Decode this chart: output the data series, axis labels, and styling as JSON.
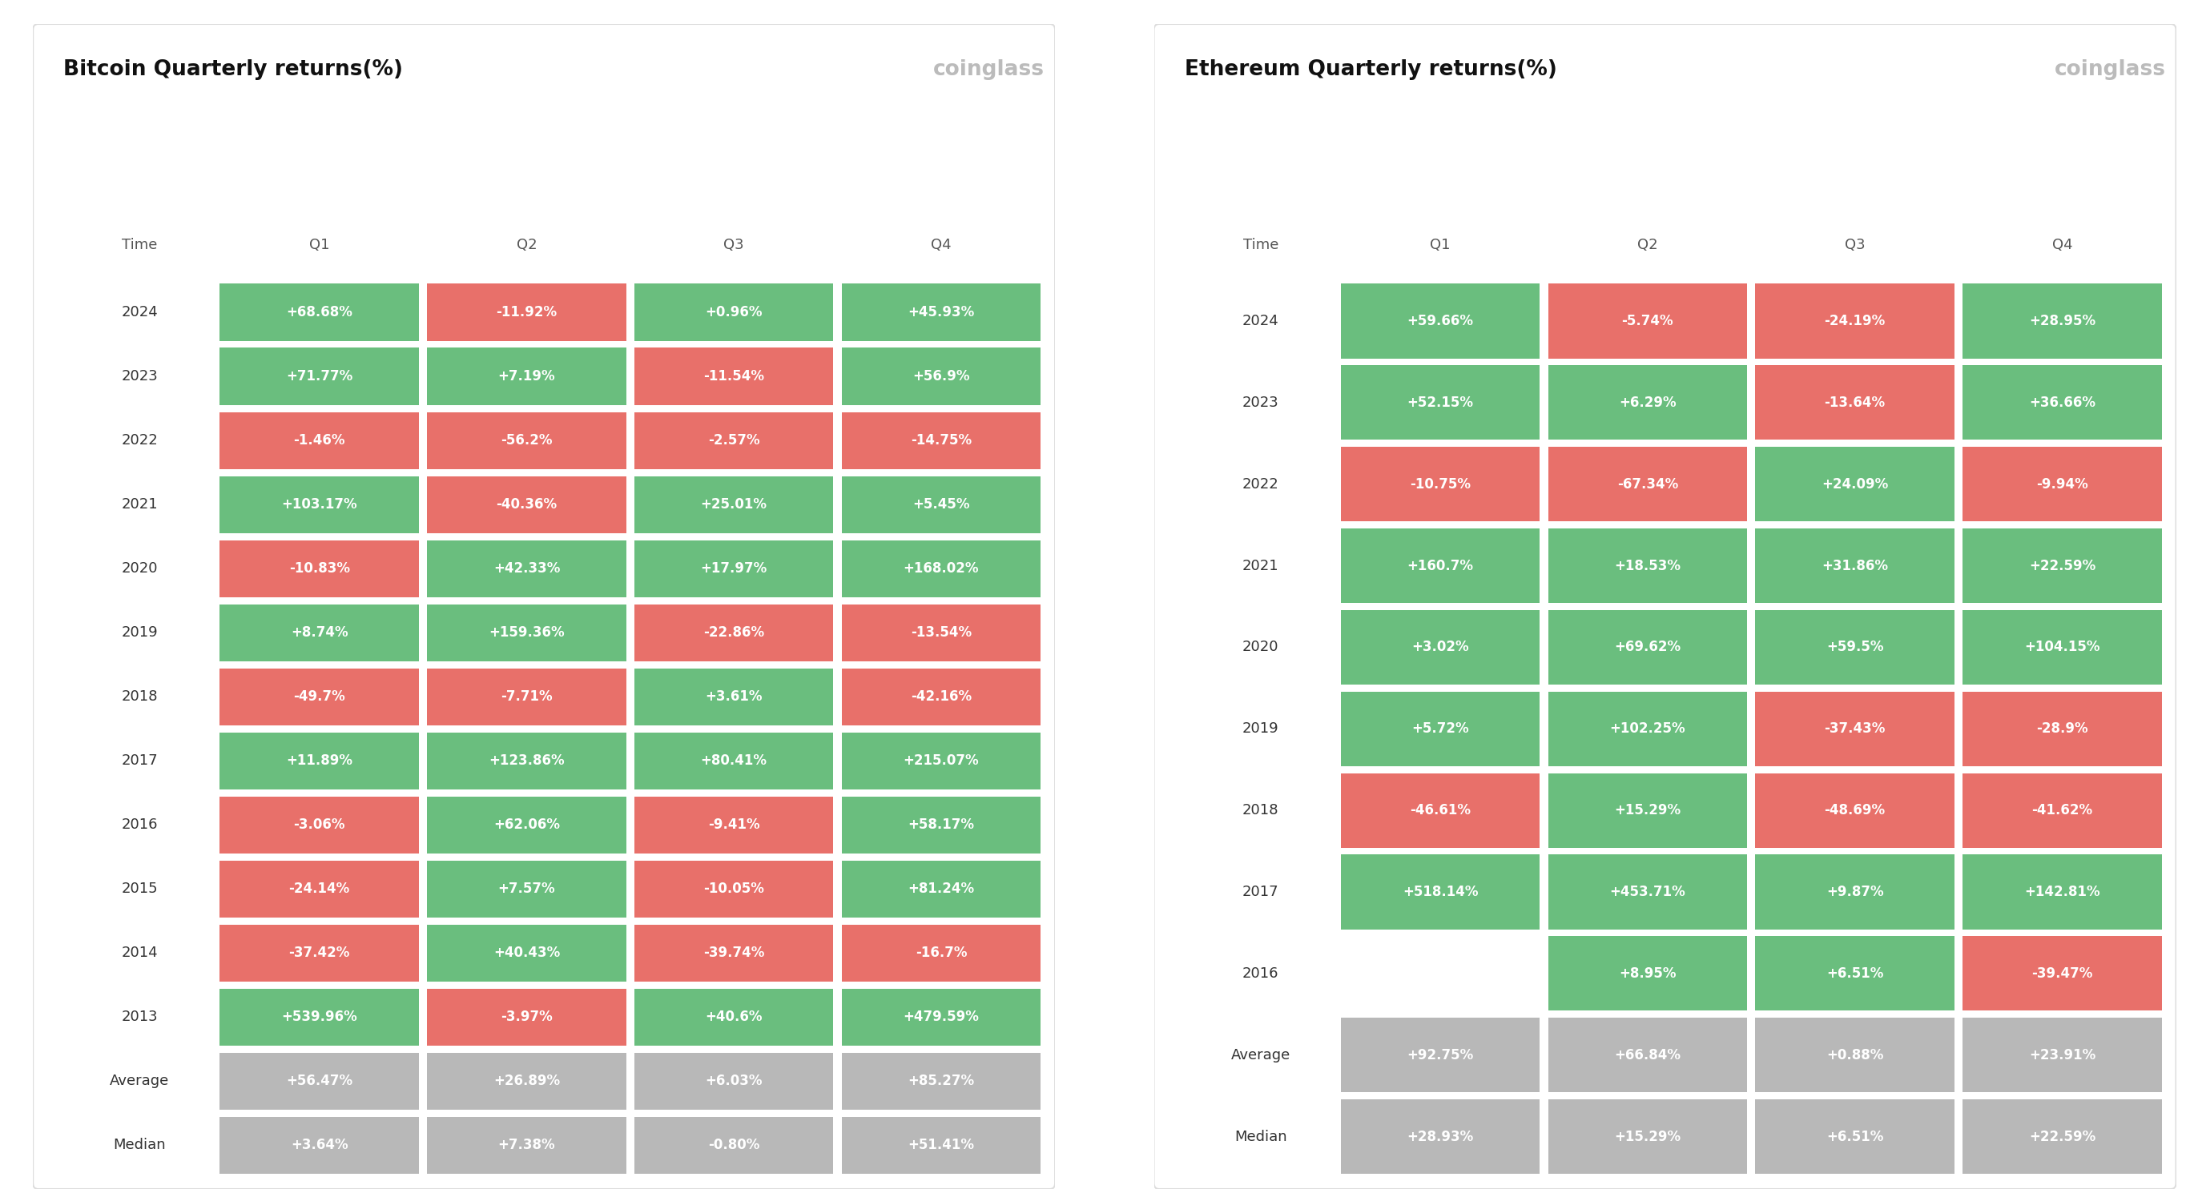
{
  "btc_title": "Bitcoin Quarterly returns(%)",
  "eth_title": "Ethereum Quarterly returns(%)",
  "brand": "coinglass",
  "columns": [
    "Time",
    "Q1",
    "Q2",
    "Q3",
    "Q4"
  ],
  "btc_rows": [
    [
      "2024",
      "+68.68%",
      "-11.92%",
      "+0.96%",
      "+45.93%"
    ],
    [
      "2023",
      "+71.77%",
      "+7.19%",
      "-11.54%",
      "+56.9%"
    ],
    [
      "2022",
      "-1.46%",
      "-56.2%",
      "-2.57%",
      "-14.75%"
    ],
    [
      "2021",
      "+103.17%",
      "-40.36%",
      "+25.01%",
      "+5.45%"
    ],
    [
      "2020",
      "-10.83%",
      "+42.33%",
      "+17.97%",
      "+168.02%"
    ],
    [
      "2019",
      "+8.74%",
      "+159.36%",
      "-22.86%",
      "-13.54%"
    ],
    [
      "2018",
      "-49.7%",
      "-7.71%",
      "+3.61%",
      "-42.16%"
    ],
    [
      "2017",
      "+11.89%",
      "+123.86%",
      "+80.41%",
      "+215.07%"
    ],
    [
      "2016",
      "-3.06%",
      "+62.06%",
      "-9.41%",
      "+58.17%"
    ],
    [
      "2015",
      "-24.14%",
      "+7.57%",
      "-10.05%",
      "+81.24%"
    ],
    [
      "2014",
      "-37.42%",
      "+40.43%",
      "-39.74%",
      "-16.7%"
    ],
    [
      "2013",
      "+539.96%",
      "-3.97%",
      "+40.6%",
      "+479.59%"
    ],
    [
      "Average",
      "+56.47%",
      "+26.89%",
      "+6.03%",
      "+85.27%"
    ],
    [
      "Median",
      "+3.64%",
      "+7.38%",
      "-0.80%",
      "+51.41%"
    ]
  ],
  "eth_rows": [
    [
      "2024",
      "+59.66%",
      "-5.74%",
      "-24.19%",
      "+28.95%"
    ],
    [
      "2023",
      "+52.15%",
      "+6.29%",
      "-13.64%",
      "+36.66%"
    ],
    [
      "2022",
      "-10.75%",
      "-67.34%",
      "+24.09%",
      "-9.94%"
    ],
    [
      "2021",
      "+160.7%",
      "+18.53%",
      "+31.86%",
      "+22.59%"
    ],
    [
      "2020",
      "+3.02%",
      "+69.62%",
      "+59.5%",
      "+104.15%"
    ],
    [
      "2019",
      "+5.72%",
      "+102.25%",
      "-37.43%",
      "-28.9%"
    ],
    [
      "2018",
      "-46.61%",
      "+15.29%",
      "-48.69%",
      "-41.62%"
    ],
    [
      "2017",
      "+518.14%",
      "+453.71%",
      "+9.87%",
      "+142.81%"
    ],
    [
      "2016",
      "",
      "+8.95%",
      "+6.51%",
      "-39.47%"
    ],
    [
      "Average",
      "+92.75%",
      "+66.84%",
      "+0.88%",
      "+23.91%"
    ],
    [
      "Median",
      "+28.93%",
      "+15.29%",
      "+6.51%",
      "+22.59%"
    ]
  ],
  "green_color": "#6abe7e",
  "red_color": "#e8706a",
  "gray_color": "#b8b8b8",
  "bg_color": "#ffffff",
  "text_color_white": "#ffffff",
  "text_color_dark": "#333333",
  "brand_color": "#bbbbbb",
  "title_fontsize": 19,
  "brand_fontsize": 19,
  "header_fontsize": 13,
  "cell_fontsize": 12,
  "label_fontsize": 13
}
